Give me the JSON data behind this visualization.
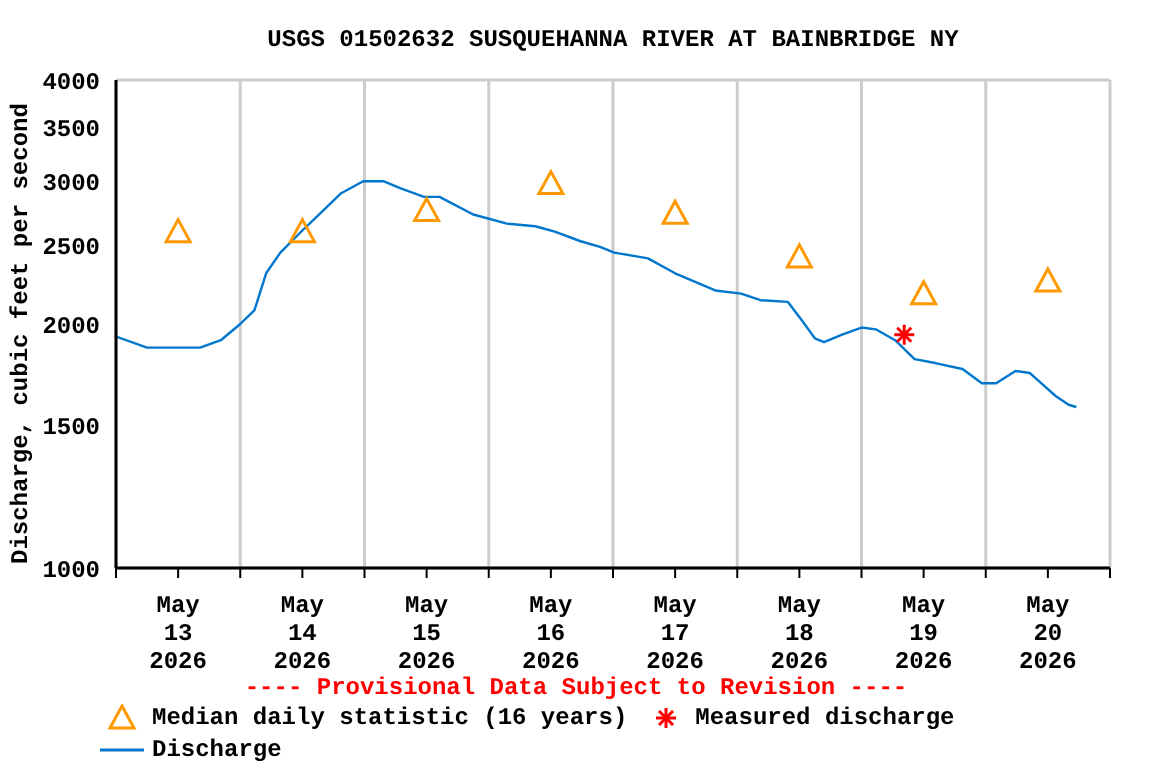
{
  "chart_data": {
    "type": "line",
    "title": "USGS 01502632 SUSQUEHANNA RIVER AT BAINBRIDGE NY",
    "ylabel": "Discharge, cubic feet per second",
    "annotations": [
      "---- Provisional Data Subject to Revision ----"
    ],
    "log": "y",
    "grid": true,
    "legend": "bottom",
    "xlim": [
      "2026-05-13T00:00",
      "2026-05-21T00:00"
    ],
    "xticks": [
      {
        "value": "2026-05-13T00:00",
        "label": null
      },
      {
        "value": "2026-05-13T12:00",
        "label": "May\n13\n2026"
      },
      {
        "value": "2026-05-14T00:00",
        "label": null
      },
      {
        "value": "2026-05-14T12:00",
        "label": "May\n14\n2026"
      },
      {
        "value": "2026-05-15T00:00",
        "label": null
      },
      {
        "value": "2026-05-15T12:00",
        "label": "May\n15\n2026"
      },
      {
        "value": "2026-05-16T00:00",
        "label": null
      },
      {
        "value": "2026-05-16T12:00",
        "label": "May\n16\n2026"
      },
      {
        "value": "2026-05-17T00:00",
        "label": null
      },
      {
        "value": "2026-05-17T12:00",
        "label": "May\n17\n2026"
      },
      {
        "value": "2026-05-18T00:00",
        "label": null
      },
      {
        "value": "2026-05-18T12:00",
        "label": "May\n18\n2026"
      },
      {
        "value": "2026-05-19T00:00",
        "label": null
      },
      {
        "value": "2026-05-19T12:00",
        "label": "May\n19\n2026"
      },
      {
        "value": "2026-05-20T00:00",
        "label": null
      },
      {
        "value": "2026-05-20T12:00",
        "label": "May\n20\n2026"
      },
      {
        "value": "2026-05-21T00:00",
        "label": null
      }
    ],
    "ylim": [
      1000,
      4000
    ],
    "yticks": [
      1000,
      1500,
      2000,
      2500,
      3000,
      3500,
      4000
    ],
    "series": [
      {
        "name": "Median daily statistic (16 years)",
        "type": "scatter",
        "marker": "triangle",
        "color": "#ff9900",
        "x": [
          "2026-05-13T12:00",
          "2026-05-14T12:00",
          "2026-05-15T12:00",
          "2026-05-16T12:00",
          "2026-05-17T12:00",
          "2026-05-18T12:00",
          "2026-05-19T12:00",
          "2026-05-20T12:00"
        ],
        "values": [
          2600,
          2600,
          2760,
          2980,
          2740,
          2420,
          2180,
          2260
        ]
      },
      {
        "name": "Measured discharge",
        "type": "scatter",
        "marker": "cross",
        "color": "#ff0000",
        "x": [
          "2026-05-19T08:15"
        ],
        "values": [
          1940
        ]
      },
      {
        "name": "Discharge",
        "marker": "none",
        "color": "#0077cc",
        "x": [
          "2026-05-13T00:00",
          "2026-05-13T06:00",
          "2026-05-13T16:15",
          "2026-05-13T20:15",
          "2026-05-14T00:00",
          "2026-05-14T02:45",
          "2026-05-14T05:00",
          "2026-05-14T07:45",
          "2026-05-14T11:30",
          "2026-05-14T15:30",
          "2026-05-14T19:30",
          "2026-05-14T23:45",
          "2026-05-15T03:45",
          "2026-05-15T07:00",
          "2026-05-15T11:30",
          "2026-05-15T14:30",
          "2026-05-15T21:00",
          "2026-05-16T03:30",
          "2026-05-16T09:00",
          "2026-05-16T12:45",
          "2026-05-16T17:45",
          "2026-05-16T21:30",
          "2026-05-17T00:15",
          "2026-05-17T06:45",
          "2026-05-17T12:00",
          "2026-05-17T19:45",
          "2026-05-18T00:45",
          "2026-05-18T04:30",
          "2026-05-18T09:45",
          "2026-05-18T12:30",
          "2026-05-18T15:00",
          "2026-05-18T16:45",
          "2026-05-18T20:15",
          "2026-05-19T00:00",
          "2026-05-19T02:45",
          "2026-05-19T06:30",
          "2026-05-19T10:15",
          "2026-05-19T14:15",
          "2026-05-19T19:30",
          "2026-05-19T23:15",
          "2026-05-20T02:00",
          "2026-05-20T05:45",
          "2026-05-20T08:30",
          "2026-05-20T10:45",
          "2026-05-20T13:30",
          "2026-05-20T16:00",
          "2026-05-20T17:30"
        ],
        "values": [
          1930,
          1870,
          1870,
          1910,
          2000,
          2080,
          2310,
          2450,
          2590,
          2740,
          2900,
          3000,
          3000,
          2940,
          2870,
          2870,
          2730,
          2660,
          2640,
          2600,
          2530,
          2490,
          2450,
          2410,
          2310,
          2200,
          2180,
          2140,
          2130,
          2020,
          1920,
          1900,
          1940,
          1980,
          1970,
          1910,
          1810,
          1790,
          1760,
          1690,
          1690,
          1750,
          1740,
          1690,
          1630,
          1590,
          1580
        ]
      }
    ]
  }
}
